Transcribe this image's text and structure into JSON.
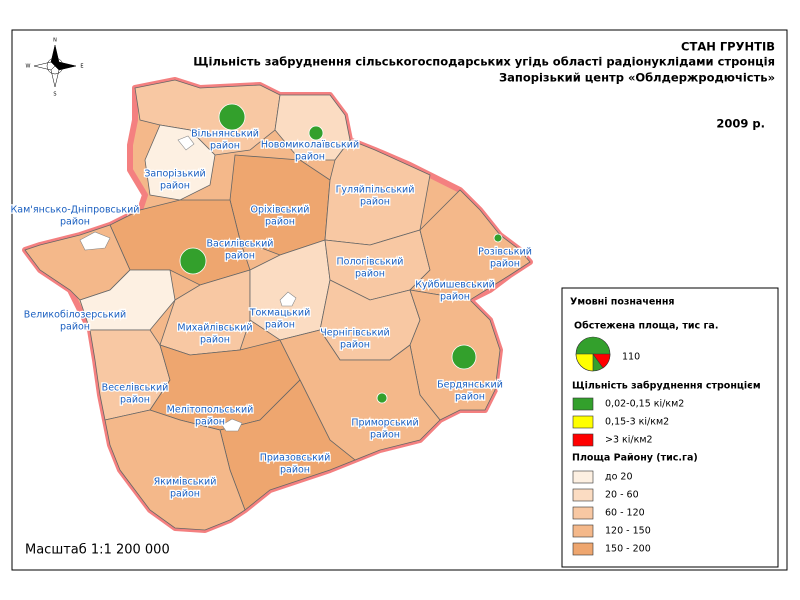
{
  "header": {
    "org": "СТАН ГРУНТІВ",
    "title": "Щільність забруднення сільськогосподарських угідь області радіонуклідами стронція",
    "center": "Запорізький центр «Облдержродючість»",
    "year": "2009 р."
  },
  "compass": {
    "n": "N",
    "s": "S",
    "e": "E",
    "w": "W"
  },
  "districts": [
    {
      "name": "Вільнянський",
      "suffix": "район"
    },
    {
      "name": "Новомиколаївський",
      "suffix": "район"
    },
    {
      "name": "Запорізький",
      "suffix": "район"
    },
    {
      "name": "Кам'янсько-Дніпровський",
      "suffix": "район"
    },
    {
      "name": "Оріхівський",
      "suffix": "район"
    },
    {
      "name": "Гуляйпільський",
      "suffix": "район"
    },
    {
      "name": "Василівський",
      "suffix": "район"
    },
    {
      "name": "Розівський",
      "suffix": "район"
    },
    {
      "name": "Пологівський",
      "suffix": "район"
    },
    {
      "name": "Куйбишевський",
      "suffix": "район"
    },
    {
      "name": "Великобілозерський",
      "suffix": "район"
    },
    {
      "name": "Токмацький",
      "suffix": "район"
    },
    {
      "name": "Михайлівський",
      "suffix": "район"
    },
    {
      "name": "Чернігівський",
      "suffix": "район"
    },
    {
      "name": "Бердянський",
      "suffix": "район"
    },
    {
      "name": "Веселівський",
      "suffix": "район"
    },
    {
      "name": "Мелітопольський",
      "suffix": "район"
    },
    {
      "name": "Приморський",
      "suffix": "район"
    },
    {
      "name": "Приазовський",
      "suffix": "район"
    },
    {
      "name": "Якимівський",
      "suffix": "район"
    }
  ],
  "legend": {
    "title": "Умовні позначення",
    "survey_title": "Обстежена площа, тис га.",
    "survey_value": "110",
    "density_title": "Щільність забруднення стронцієм",
    "density": [
      {
        "label": "0,02-0,15 кі/км2",
        "color": "#33a02c"
      },
      {
        "label": "0,15-3 кі/км2",
        "color": "#ffff00"
      },
      {
        "label": ">3 кі/км2",
        "color": "#ff0000"
      }
    ],
    "area_title": "Площа Району (тис.га)",
    "area": [
      {
        "label": "до 20",
        "color": "#fdf0e2"
      },
      {
        "label": "20 - 60",
        "color": "#fbdcc2"
      },
      {
        "label": "60 - 120",
        "color": "#f8c8a3"
      },
      {
        "label": "120 - 150",
        "color": "#f4b88a"
      },
      {
        "label": "150 - 200",
        "color": "#eea66f"
      }
    ]
  },
  "scale": "Масштаб 1:1 200 000"
}
